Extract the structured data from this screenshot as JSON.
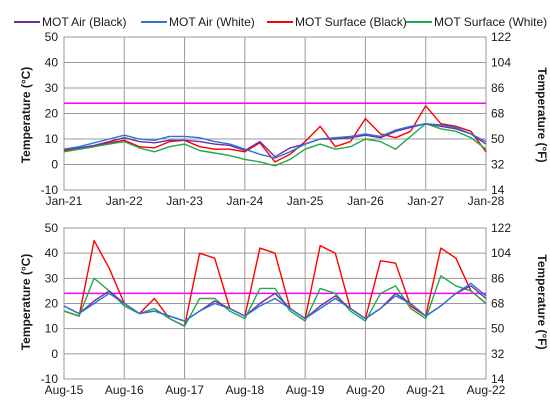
{
  "colors": {
    "mot_air_black": "#7030a0",
    "mot_air_white": "#2e75d0",
    "mot_surface_black": "#ff0000",
    "mot_surface_white": "#21a84b",
    "reference_line": "#ff00ff",
    "grid": "#9a9a9a"
  },
  "legend": {
    "position": "top",
    "entries": [
      "MOT Air (Black)",
      "MOT Air (White)",
      "MOT Surface (Black)",
      "MOT Surface (White)"
    ]
  },
  "chart_data": [
    {
      "type": "line",
      "ylabel": "Temperature (°C)",
      "y2label": "Temperature (°F)",
      "ylim": [
        -10,
        50
      ],
      "yticks": [
        -10,
        0,
        10,
        20,
        30,
        40,
        50
      ],
      "y2ticks": [
        14,
        32,
        50,
        68,
        86,
        104,
        122
      ],
      "xticklabels": [
        "Jan-21",
        "Jan-22",
        "Jan-23",
        "Jan-24",
        "Jan-25",
        "Jan-26",
        "Jan-27",
        "Jan-28"
      ],
      "grid": true,
      "reference_line": 24,
      "x": [
        0,
        0.25,
        0.5,
        0.75,
        1,
        1.25,
        1.5,
        1.75,
        2,
        2.25,
        2.5,
        2.75,
        3,
        3.25,
        3.5,
        3.75,
        4,
        4.25,
        4.5,
        4.75,
        5,
        5.25,
        5.5,
        5.75,
        6,
        6.25,
        6.5,
        6.75,
        7
      ],
      "series": [
        {
          "name": "MOT Air (Black)",
          "values": [
            6,
            6.5,
            7.5,
            9,
            10.5,
            9,
            8.5,
            9.5,
            9.5,
            9,
            8,
            7.5,
            5.5,
            9,
            3,
            6.5,
            8,
            10,
            10,
            10.5,
            11.5,
            10.5,
            13,
            14.5,
            16,
            15,
            14,
            12,
            8
          ]
        },
        {
          "name": "MOT Air (White)",
          "values": [
            6,
            7,
            8.5,
            10,
            11.5,
            10,
            9.5,
            11,
            11,
            10.5,
            9,
            8,
            6,
            4,
            2.5,
            5,
            8,
            10,
            10.5,
            11,
            12,
            11,
            13.5,
            15,
            16,
            15.5,
            14.5,
            12,
            9
          ]
        },
        {
          "name": "MOT Surface (Black)",
          "values": [
            5.5,
            6,
            7,
            8.5,
            9.5,
            7,
            6.5,
            9,
            9.5,
            7,
            6,
            6,
            5,
            8.5,
            1,
            4,
            9,
            15,
            7,
            9,
            18,
            12,
            10.5,
            13,
            23,
            16,
            15,
            13,
            5
          ]
        },
        {
          "name": "MOT Surface (White)",
          "values": [
            5,
            6,
            7,
            8,
            9,
            6.5,
            5,
            7,
            8,
            5.5,
            4.5,
            3.5,
            2,
            1,
            -0.5,
            2,
            6,
            8,
            6,
            7,
            10,
            9,
            6,
            11,
            16,
            14,
            13,
            10.5,
            6
          ]
        }
      ]
    },
    {
      "type": "line",
      "ylabel": "Temperature (°C)",
      "y2label": "Temperature (°F)",
      "ylim": [
        -10,
        50
      ],
      "yticks": [
        -10,
        0,
        10,
        20,
        30,
        40,
        50
      ],
      "y2ticks": [
        14,
        32,
        50,
        68,
        86,
        104,
        122
      ],
      "xticklabels": [
        "Aug-15",
        "Aug-16",
        "Aug-17",
        "Aug-18",
        "Aug-19",
        "Aug-20",
        "Aug-21",
        "Aug-22"
      ],
      "grid": true,
      "reference_line": 24,
      "x": [
        0,
        0.25,
        0.5,
        0.75,
        1,
        1.25,
        1.5,
        1.75,
        2,
        2.25,
        2.5,
        2.75,
        3,
        3.25,
        3.5,
        3.75,
        4,
        4.25,
        4.5,
        4.75,
        5,
        5.25,
        5.5,
        5.75,
        6,
        6.25,
        6.5,
        6.75,
        7
      ],
      "series": [
        {
          "name": "MOT Air (Black)",
          "values": [
            19,
            16,
            21,
            25,
            20,
            16,
            17,
            15,
            13,
            17,
            21,
            18,
            15,
            20,
            24,
            18,
            14,
            19,
            23,
            18,
            14,
            18,
            24,
            20,
            15,
            19,
            24,
            27,
            22
          ]
        },
        {
          "name": "MOT Air (White)",
          "values": [
            19,
            16,
            20,
            24,
            20,
            16,
            17,
            15,
            13,
            17,
            20,
            18,
            15,
            19,
            22,
            18,
            14,
            18,
            22,
            18,
            14,
            18,
            23,
            20,
            15,
            19,
            24,
            28,
            23
          ]
        },
        {
          "name": "MOT Surface (Black)",
          "values": [
            17,
            15,
            45,
            34,
            20,
            16,
            22,
            14,
            11,
            40,
            38,
            18,
            15,
            42,
            40,
            18,
            14,
            43,
            40,
            18,
            14,
            37,
            36,
            19,
            15,
            42,
            38,
            25,
            20
          ]
        },
        {
          "name": "MOT Surface (White)",
          "values": [
            17,
            15,
            30,
            25,
            19,
            16,
            18,
            14,
            11,
            22,
            22,
            17,
            14,
            26,
            26,
            17,
            13,
            26,
            24,
            17,
            13,
            24,
            27,
            18,
            14,
            31,
            27,
            25,
            20
          ]
        }
      ]
    }
  ]
}
